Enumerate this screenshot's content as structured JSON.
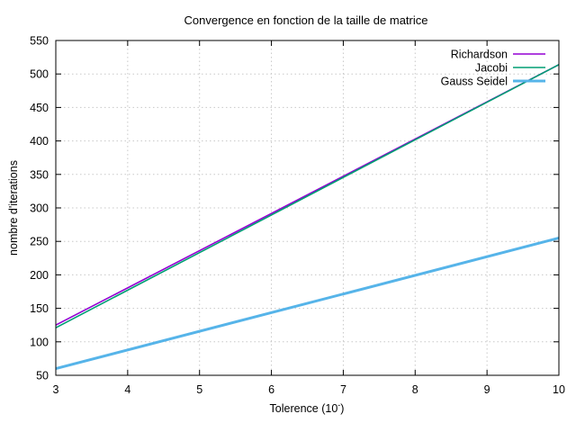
{
  "chart_data": {
    "type": "line",
    "title": "Convergence en fonction de la taille de matrice",
    "xlabel": "Tolerence (10",
    "xlabel_sup": "-",
    "xlabel_close": ")",
    "ylabel": "nombre d'iterations",
    "xlim": [
      3,
      10
    ],
    "ylim": [
      50,
      550
    ],
    "xticks": [
      3,
      4,
      5,
      6,
      7,
      8,
      9,
      10
    ],
    "yticks": [
      50,
      100,
      150,
      200,
      250,
      300,
      350,
      400,
      450,
      500,
      550
    ],
    "grid": true,
    "legend": "top-right",
    "series": [
      {
        "name": "Richardson",
        "color": "#9400d3",
        "x": [
          3,
          10
        ],
        "y": [
          125,
          514
        ]
      },
      {
        "name": "Jacobi",
        "color": "#009e73",
        "x": [
          3,
          10
        ],
        "y": [
          121,
          514
        ]
      },
      {
        "name": "Gauss Seidel",
        "color": "#56b4e9",
        "x": [
          3,
          10
        ],
        "y": [
          60,
          255
        ]
      }
    ]
  }
}
